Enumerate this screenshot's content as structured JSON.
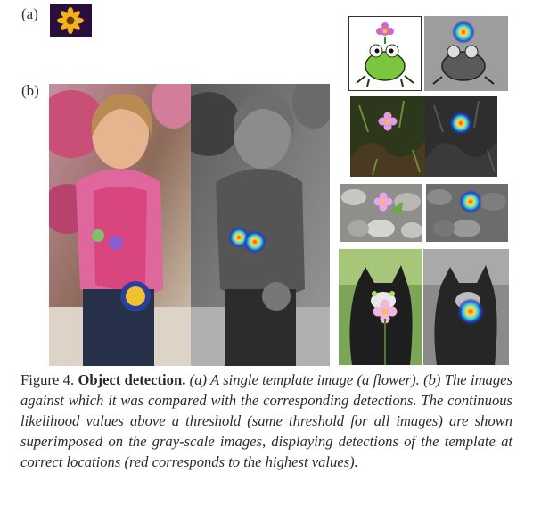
{
  "figure": {
    "label_a": "(a)",
    "label_b": "(b)",
    "caption": {
      "prefix": "Figure 4.",
      "title": "Object detection.",
      "body": "(a) A single template image (a flower). (b) The images against which it was compared with the corresponding detections. The continuous likelihood values above a threshold (same threshold for all images) are shown superimposed on the gray-scale images, displaying detections of the template at correct locations (red corresponds to the highest values)."
    }
  }
}
